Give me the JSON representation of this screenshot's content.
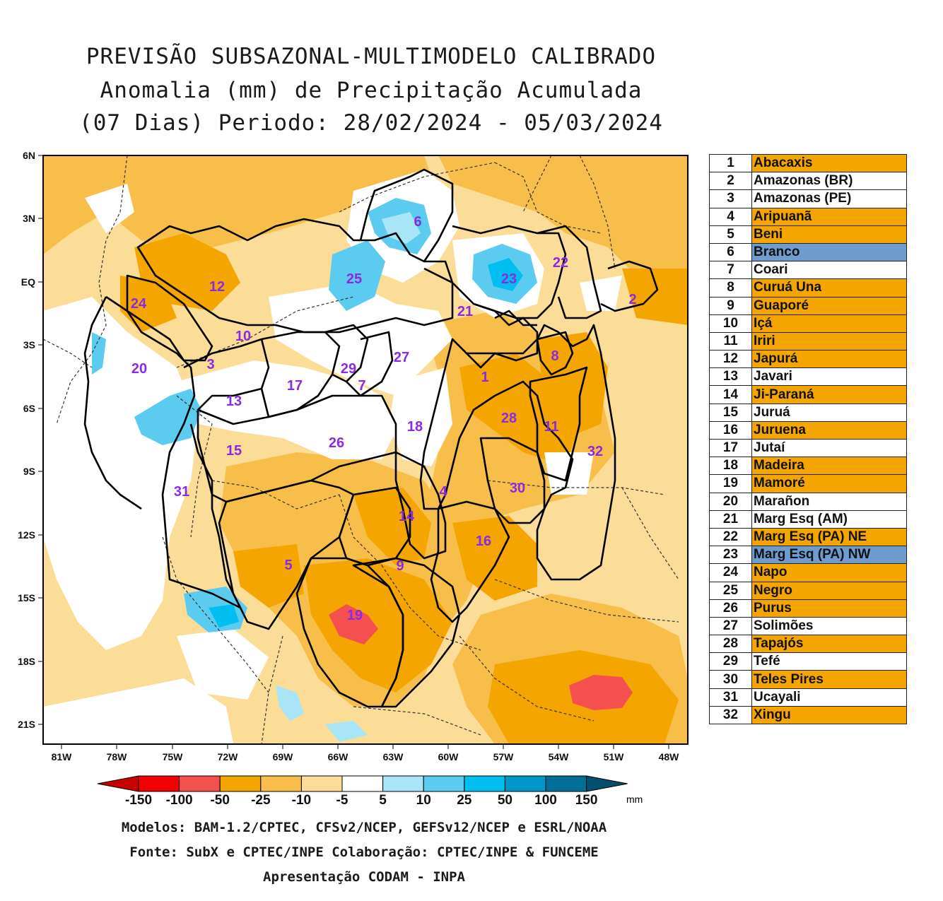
{
  "title": {
    "line1": "PREVISÃO SUBSAZONAL-MULTIMODELO CALIBRADO",
    "line2": "Anomalia (mm) de Precipitação Acumulada",
    "line3": "(07 Dias) Periodo: 28/02/2024 - 05/03/2024"
  },
  "axes": {
    "lat_ticks": [
      "6N",
      "3N",
      "EQ",
      "3S",
      "6S",
      "9S",
      "12S",
      "15S",
      "18S",
      "21S"
    ],
    "lon_ticks": [
      "81W",
      "78W",
      "75W",
      "72W",
      "69W",
      "66W",
      "63W",
      "60W",
      "57W",
      "54W",
      "51W",
      "48W"
    ]
  },
  "colorbar": {
    "labels": [
      "-150",
      "-100",
      "-50",
      "-25",
      "-10",
      "-5",
      "5",
      "10",
      "25",
      "50",
      "100",
      "150"
    ],
    "unit": "mm",
    "colors": [
      "#c80000",
      "#f00000",
      "#f45050",
      "#f5a500",
      "#f7bf4a",
      "#fbdd97",
      "#ffffff",
      "#a8e6f7",
      "#5ccbf0",
      "#00bff0",
      "#0096c8",
      "#006e96",
      "#00506e"
    ]
  },
  "basins": [
    {
      "id": "1",
      "name": "Abacaxis",
      "anomaly": "negative"
    },
    {
      "id": "2",
      "name": "Amazonas (BR)",
      "anomaly": "neutral"
    },
    {
      "id": "3",
      "name": "Amazonas (PE)",
      "anomaly": "neutral"
    },
    {
      "id": "4",
      "name": "Aripuanã",
      "anomaly": "negative"
    },
    {
      "id": "5",
      "name": "Beni",
      "anomaly": "negative"
    },
    {
      "id": "6",
      "name": "Branco",
      "anomaly": "positive"
    },
    {
      "id": "7",
      "name": "Coari",
      "anomaly": "neutral"
    },
    {
      "id": "8",
      "name": "Curuá Una",
      "anomaly": "negative"
    },
    {
      "id": "9",
      "name": "Guaporé",
      "anomaly": "negative"
    },
    {
      "id": "10",
      "name": "Içá",
      "anomaly": "negative"
    },
    {
      "id": "11",
      "name": "Iriri",
      "anomaly": "negative"
    },
    {
      "id": "12",
      "name": "Japurá",
      "anomaly": "negative"
    },
    {
      "id": "13",
      "name": "Javari",
      "anomaly": "neutral"
    },
    {
      "id": "14",
      "name": "Ji-Paraná",
      "anomaly": "negative"
    },
    {
      "id": "15",
      "name": "Juruá",
      "anomaly": "neutral"
    },
    {
      "id": "16",
      "name": "Juruena",
      "anomaly": "negative"
    },
    {
      "id": "17",
      "name": "Jutaí",
      "anomaly": "neutral"
    },
    {
      "id": "18",
      "name": "Madeira",
      "anomaly": "negative"
    },
    {
      "id": "19",
      "name": "Mamoré",
      "anomaly": "negative"
    },
    {
      "id": "20",
      "name": "Marañon",
      "anomaly": "neutral"
    },
    {
      "id": "21",
      "name": "Marg Esq (AM)",
      "anomaly": "neutral"
    },
    {
      "id": "22",
      "name": "Marg Esq (PA) NE",
      "anomaly": "negative"
    },
    {
      "id": "23",
      "name": "Marg Esq (PA) NW",
      "anomaly": "positive"
    },
    {
      "id": "24",
      "name": "Napo",
      "anomaly": "negative"
    },
    {
      "id": "25",
      "name": "Negro",
      "anomaly": "negative"
    },
    {
      "id": "26",
      "name": "Purus",
      "anomaly": "negative"
    },
    {
      "id": "27",
      "name": "Solimões",
      "anomaly": "neutral"
    },
    {
      "id": "28",
      "name": "Tapajós",
      "anomaly": "negative"
    },
    {
      "id": "29",
      "name": "Tefé",
      "anomaly": "neutral"
    },
    {
      "id": "30",
      "name": "Teles Pires",
      "anomaly": "negative"
    },
    {
      "id": "31",
      "name": "Ucayali",
      "anomaly": "neutral"
    },
    {
      "id": "32",
      "name": "Xingu",
      "anomaly": "negative"
    }
  ],
  "anomaly_colors": {
    "negative": "#f5a500",
    "neutral": "#ffffff",
    "positive": "#6f9ccf"
  },
  "credits": {
    "line1": "Modelos: BAM-1.2/CPTEC, CFSv2/NCEP, GEFSv12/NCEP e ESRL/NOAA",
    "line2": "Fonte: SubX e CPTEC/INPE      Colaboração: CPTEC/INPE & FUNCEME",
    "line3": "Apresentação CODAM - INPA"
  }
}
